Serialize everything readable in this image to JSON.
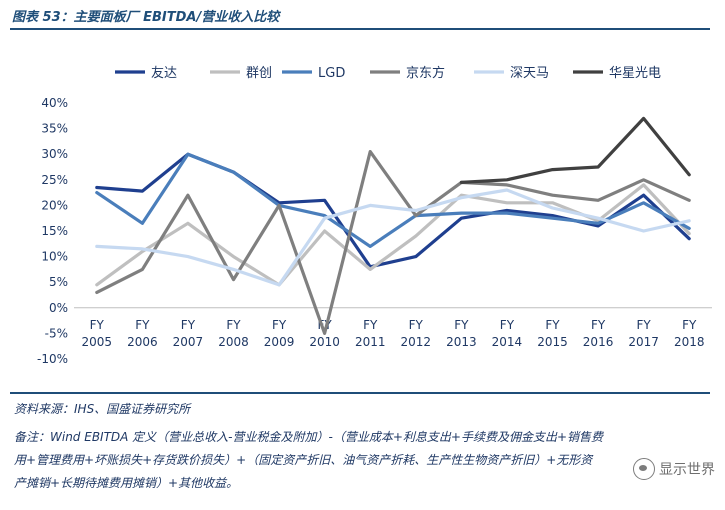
{
  "title": "图表 53：主要面板厂 EBITDA/营业收入比较",
  "source": "资料来源：IHS、国盛证券研究所",
  "notes": [
    "备注：Wind EBITDA 定义（营业总收入-营业税金及附加）-（营业成本+利息支出+手续费及佣金支出+销售费",
    "用+管理费用+坏账损失+存货跌价损失）+（固定资产折旧、油气资产折耗、生产性生物资产折旧）+无形资",
    "产摊销+长期待摊费用摊销）+其他收益。"
  ],
  "watermark": "显示世界",
  "watermark_icon": "wechat-icon",
  "chart_data": {
    "type": "line",
    "categories": [
      "FY 2005",
      "FY 2006",
      "FY 2007",
      "FY 2008",
      "FY 2009",
      "FY 2010",
      "FY 2011",
      "FY 2012",
      "FY 2013",
      "FY 2014",
      "FY 2015",
      "FY 2016",
      "FY 2017",
      "FY 2018"
    ],
    "category_lines": [
      [
        "FY",
        "2005"
      ],
      [
        "FY",
        "2006"
      ],
      [
        "FY",
        "2007"
      ],
      [
        "FY",
        "2008"
      ],
      [
        "FY",
        "2009"
      ],
      [
        "FY",
        "2010"
      ],
      [
        "FY",
        "2011"
      ],
      [
        "FY",
        "2012"
      ],
      [
        "FY",
        "2013"
      ],
      [
        "FY",
        "2014"
      ],
      [
        "FY",
        "2015"
      ],
      [
        "FY",
        "2016"
      ],
      [
        "FY",
        "2017"
      ],
      [
        "FY",
        "2018"
      ]
    ],
    "y_ticks": [
      "-10%",
      "-5%",
      "0%",
      "5%",
      "10%",
      "15%",
      "20%",
      "25%",
      "30%",
      "35%",
      "40%"
    ],
    "ylim": [
      -10,
      40
    ],
    "grid": false,
    "legend_position": "top",
    "series": [
      {
        "name": "友达",
        "color": "#1f3f8f",
        "values": [
          23.5,
          22.8,
          30.0,
          26.5,
          20.5,
          21.0,
          8.0,
          10.0,
          17.5,
          19.0,
          18.0,
          16.0,
          22.0,
          13.5
        ]
      },
      {
        "name": "群创",
        "color": "#bfbfbf",
        "values": [
          4.5,
          11.0,
          16.5,
          10.0,
          4.5,
          15.0,
          7.5,
          14.0,
          22.0,
          20.5,
          20.5,
          17.0,
          24.0,
          14.5
        ]
      },
      {
        "name": "LGD",
        "color": "#4a7ebb",
        "values": [
          22.5,
          16.5,
          30.0,
          26.5,
          20.0,
          18.0,
          12.0,
          18.0,
          18.5,
          18.5,
          17.5,
          16.5,
          20.5,
          15.5
        ]
      },
      {
        "name": "京东方",
        "color": "#7f7f7f",
        "values": [
          3.0,
          7.5,
          22.0,
          5.5,
          20.0,
          -5.0,
          30.5,
          18.0,
          24.5,
          24.0,
          22.0,
          21.0,
          25.0,
          21.0
        ]
      },
      {
        "name": "深天马",
        "color": "#c6d9f1",
        "values": [
          12.0,
          11.5,
          10.0,
          7.5,
          4.5,
          17.5,
          20.0,
          19.0,
          21.5,
          23.0,
          19.5,
          17.5,
          15.0,
          17.0
        ]
      },
      {
        "name": "华星光电",
        "color": "#404040",
        "values": [
          null,
          null,
          null,
          null,
          null,
          null,
          null,
          null,
          24.5,
          25.0,
          27.0,
          27.5,
          37.0,
          26.0
        ]
      }
    ]
  }
}
